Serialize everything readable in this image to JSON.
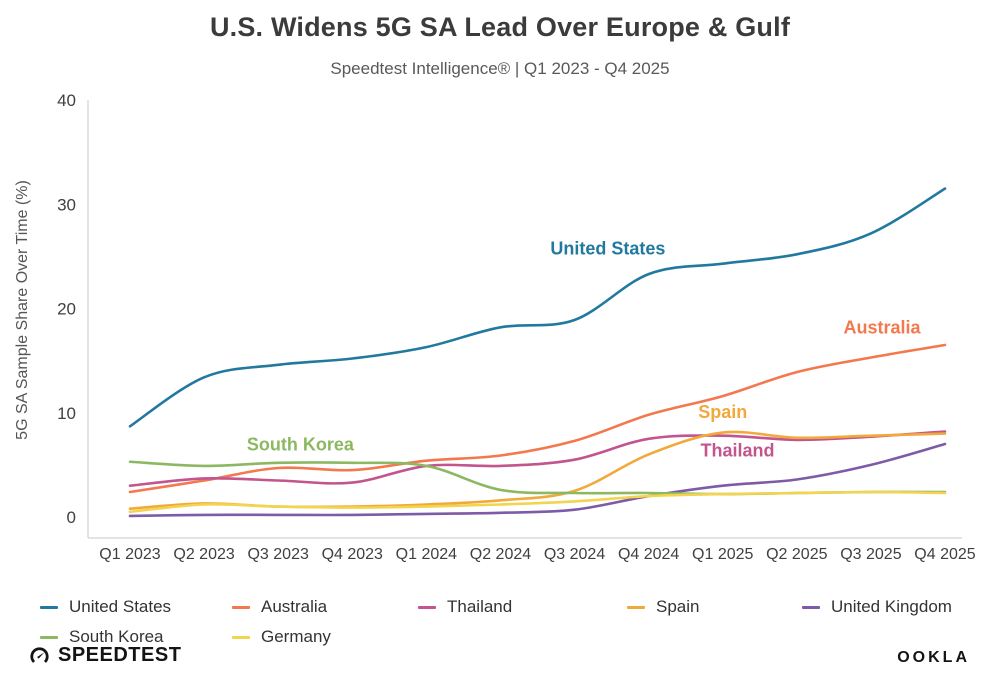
{
  "chart_data": {
    "type": "line",
    "title": "U.S. Widens 5G SA Lead Over Europe & Gulf",
    "subtitle": "Speedtest Intelligence® | Q1 2023 - Q4 2025",
    "ylabel": "5G SA Sample Share Over Time (%)",
    "ylim": [
      0,
      40
    ],
    "yticks": [
      0,
      10,
      20,
      30,
      40
    ],
    "grid": false,
    "legend_position": "bottom",
    "categories": [
      "Q1 2023",
      "Q2 2023",
      "Q3 2023",
      "Q4 2023",
      "Q1 2024",
      "Q2 2024",
      "Q3 2024",
      "Q4 2024",
      "Q1 2025",
      "Q2 2025",
      "Q3 2025",
      "Q4 2025"
    ],
    "series": [
      {
        "name": "United States",
        "color": "#2279A0",
        "values": [
          8.7,
          13.4,
          14.6,
          15.2,
          16.3,
          18.2,
          18.9,
          23.3,
          24.3,
          25.2,
          27.2,
          31.5
        ]
      },
      {
        "name": "Australia",
        "color": "#F4784D",
        "values": [
          2.4,
          3.5,
          4.7,
          4.5,
          5.4,
          5.9,
          7.3,
          9.8,
          11.6,
          13.9,
          15.3,
          16.5
        ]
      },
      {
        "name": "Thailand",
        "color": "#C2548E",
        "values": [
          3.0,
          3.7,
          3.5,
          3.3,
          4.9,
          4.9,
          5.5,
          7.5,
          7.8,
          7.4,
          7.7,
          8.2
        ]
      },
      {
        "name": "Spain",
        "color": "#F2A93B",
        "values": [
          0.8,
          1.3,
          1.0,
          1.0,
          1.2,
          1.6,
          2.5,
          6.0,
          8.1,
          7.6,
          7.8,
          8.0
        ]
      },
      {
        "name": "United Kingdom",
        "color": "#7D5BA6",
        "values": [
          0.1,
          0.2,
          0.2,
          0.2,
          0.3,
          0.4,
          0.7,
          2.0,
          3.0,
          3.6,
          5.0,
          7.0
        ]
      },
      {
        "name": "South Korea",
        "color": "#8CB861",
        "values": [
          5.3,
          4.9,
          5.2,
          5.2,
          4.9,
          2.6,
          2.3,
          2.3,
          2.2,
          2.3,
          2.4,
          2.4
        ]
      },
      {
        "name": "Germany",
        "color": "#F2D44E",
        "values": [
          0.5,
          1.2,
          1.0,
          0.9,
          1.0,
          1.2,
          1.5,
          2.0,
          2.2,
          2.3,
          2.4,
          2.3
        ]
      }
    ],
    "annotations": [
      {
        "text": "United States",
        "series": "United States",
        "x": 6.45,
        "y": 25.2
      },
      {
        "text": "Australia",
        "series": "Australia",
        "x": 10.15,
        "y": 17.6
      },
      {
        "text": "Spain",
        "series": "Spain",
        "x": 8.0,
        "y": 9.5
      },
      {
        "text": "Thailand",
        "series": "Thailand",
        "x": 8.2,
        "y": 5.8
      },
      {
        "text": "South Korea",
        "series": "South Korea",
        "x": 2.3,
        "y": 6.4
      }
    ],
    "legend_rows": [
      [
        "United States",
        "Australia",
        "Thailand",
        "Spain",
        "United Kingdom"
      ],
      [
        "South Korea",
        "Germany"
      ]
    ]
  },
  "footer": {
    "speedtest_label": "SPEEDTEST",
    "ookla_label": "OOKLA"
  }
}
